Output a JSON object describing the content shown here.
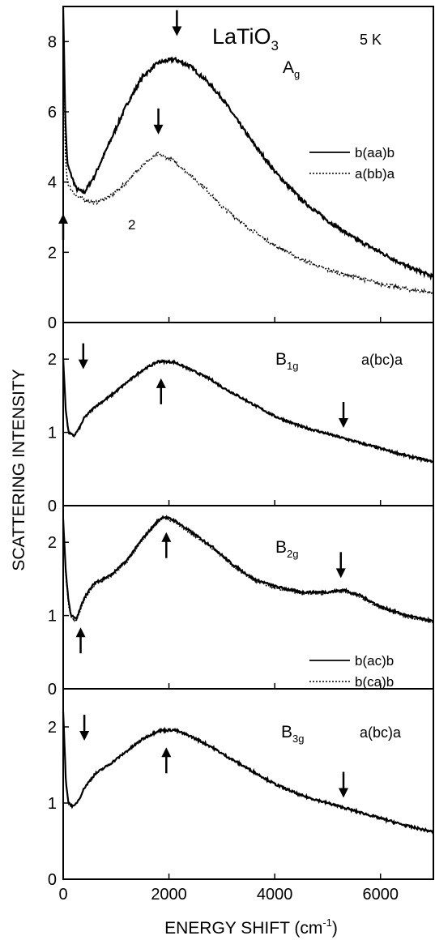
{
  "chart_data": {
    "type": "line",
    "title": "LaTiO3",
    "title_main": "LaTiO",
    "title_sub": "3",
    "temperature": "5 K",
    "xlabel": "ENERGY SHIFT (cm",
    "xlabel_sup": "-1",
    "xlabel_end": ")",
    "ylabel": "SCATTERING INTENSITY",
    "xlim": [
      0,
      7000
    ],
    "x_ticks": [
      0,
      2000,
      4000,
      6000
    ],
    "x_tick_labels": [
      "0",
      "2000",
      "4000",
      "6000"
    ],
    "grid": false,
    "panels": [
      {
        "id": "Ag",
        "symbol": "A",
        "symbol_sub": "g",
        "geometry": "",
        "ylim": [
          0,
          9
        ],
        "y_ticks": [
          0,
          2,
          4,
          6,
          8
        ],
        "y_tick_labels": [
          "0",
          "2",
          "4",
          "6",
          "8"
        ],
        "annotation": "2",
        "legend": [
          "b(aa)b",
          "a(bb)a"
        ],
        "series": [
          {
            "name": "b(aa)b",
            "style": "solid",
            "x": [
              0,
              40,
              80,
              150,
              250,
              400,
              600,
              900,
              1200,
              1500,
              1800,
              2100,
              2400,
              2700,
              3000,
              3500,
              4000,
              4500,
              5000,
              5500,
              6000,
              6500,
              7000
            ],
            "y": [
              9,
              5.8,
              4.5,
              4.2,
              3.8,
              3.7,
              4.2,
              5.2,
              6.2,
              7.0,
              7.4,
              7.5,
              7.3,
              6.9,
              6.4,
              5.3,
              4.3,
              3.5,
              2.9,
              2.4,
              2.0,
              1.6,
              1.3
            ]
          },
          {
            "name": "a(bb)a",
            "style": "dotted",
            "x": [
              0,
              40,
              80,
              150,
              250,
              400,
              600,
              900,
              1200,
              1500,
              1800,
              2100,
              2400,
              2700,
              3000,
              3500,
              4000,
              4500,
              5000,
              5500,
              6000,
              6500,
              7000
            ],
            "y": [
              9,
              4.8,
              4.0,
              3.8,
              3.6,
              3.5,
              3.4,
              3.6,
              4.0,
              4.5,
              4.8,
              4.6,
              4.2,
              3.8,
              3.3,
              2.7,
              2.2,
              1.8,
              1.5,
              1.3,
              1.1,
              0.95,
              0.85
            ]
          }
        ],
        "arrows": [
          {
            "x": 2150,
            "dir": "down",
            "y": 8.55
          },
          {
            "x": 1800,
            "dir": "down",
            "y": 5.75
          },
          {
            "x": 0,
            "dir": "up",
            "y": 2.7
          }
        ]
      },
      {
        "id": "B1g",
        "symbol": "B",
        "symbol_sub": "1g",
        "geometry": "a(bc)a",
        "ylim": [
          0,
          2.5
        ],
        "y_ticks": [
          0,
          1,
          2
        ],
        "y_tick_labels": [
          "0",
          "1",
          "2"
        ],
        "annotation": "",
        "legend": [],
        "series": [
          {
            "name": "a(bc)a",
            "style": "solid",
            "x": [
              0,
              50,
              100,
              200,
              300,
              400,
              600,
              900,
              1200,
              1500,
              1800,
              2100,
              2400,
              2800,
              3000,
              3500,
              4000,
              4500,
              5000,
              5500,
              6000,
              6500,
              7000
            ],
            "y": [
              2.0,
              1.3,
              1.0,
              0.95,
              1.05,
              1.2,
              1.35,
              1.5,
              1.68,
              1.85,
              1.97,
              1.96,
              1.86,
              1.72,
              1.62,
              1.42,
              1.22,
              1.08,
              0.98,
              0.88,
              0.78,
              0.68,
              0.6
            ]
          }
        ],
        "arrows": [
          {
            "x": 380,
            "dir": "down",
            "y": 2.05
          },
          {
            "x": 1850,
            "dir": "up",
            "y": 1.55
          },
          {
            "x": 5300,
            "dir": "down",
            "y": 1.25
          }
        ]
      },
      {
        "id": "B2g",
        "symbol": "B",
        "symbol_sub": "2g",
        "geometry": "",
        "ylim": [
          0,
          2.5
        ],
        "y_ticks": [
          0,
          1,
          2
        ],
        "y_tick_labels": [
          "0",
          "1",
          "2"
        ],
        "annotation": "",
        "legend": [
          "b(ac)b",
          "b(ca)b"
        ],
        "series": [
          {
            "name": "b(ac)b",
            "style": "solid",
            "x": [
              0,
              50,
              100,
              150,
              250,
              400,
              600,
              900,
              1200,
              1500,
              1800,
              1900,
              2100,
              2400,
              2800,
              3200,
              3600,
              4000,
              4500,
              5000,
              5300,
              5600,
              6000,
              6500,
              7000
            ],
            "y": [
              2.3,
              1.6,
              1.2,
              1.0,
              0.95,
              1.25,
              1.45,
              1.55,
              1.75,
              2.05,
              2.3,
              2.35,
              2.3,
              2.15,
              1.95,
              1.7,
              1.5,
              1.4,
              1.32,
              1.32,
              1.35,
              1.28,
              1.12,
              1.0,
              0.92
            ]
          },
          {
            "name": "b(ca)b",
            "style": "dotted",
            "x": [
              0,
              50,
              100,
              150,
              250,
              400,
              600,
              900,
              1200,
              1500,
              1800,
              1900,
              2100,
              2400,
              2800,
              3200,
              3600,
              4000,
              4500,
              5000,
              5300,
              5600,
              6000,
              6500,
              7000
            ],
            "y": [
              2.3,
              1.55,
              1.15,
              0.98,
              0.92,
              1.22,
              1.42,
              1.53,
              1.73,
              2.03,
              2.28,
              2.33,
              2.28,
              2.13,
              1.93,
              1.68,
              1.48,
              1.38,
              1.3,
              1.3,
              1.33,
              1.26,
              1.1,
              0.98,
              0.9
            ]
          }
        ],
        "arrows": [
          {
            "x": 1950,
            "dir": "up",
            "y": 1.95
          },
          {
            "x": 5250,
            "dir": "down",
            "y": 1.7
          },
          {
            "x": 330,
            "dir": "up",
            "y": 0.65
          }
        ]
      },
      {
        "id": "B3g",
        "symbol": "B",
        "symbol_sub": "3g",
        "geometry": "a(bc)a",
        "ylim": [
          0,
          2.5
        ],
        "y_ticks": [
          0,
          1,
          2
        ],
        "y_tick_labels": [
          "0",
          "1",
          "2"
        ],
        "annotation": "",
        "legend": [],
        "series": [
          {
            "name": "a(bc)a",
            "style": "solid",
            "x": [
              0,
              50,
              100,
              200,
              300,
              400,
              600,
              900,
              1200,
              1500,
              1800,
              2100,
              2400,
              2800,
              3000,
              3500,
              4000,
              4500,
              5000,
              5500,
              6000,
              6500,
              7000
            ],
            "y": [
              2.2,
              1.3,
              1.0,
              0.95,
              1.05,
              1.2,
              1.38,
              1.52,
              1.68,
              1.84,
              1.95,
              1.96,
              1.88,
              1.74,
              1.65,
              1.45,
              1.25,
              1.1,
              1.0,
              0.9,
              0.8,
              0.7,
              0.62
            ]
          }
        ],
        "arrows": [
          {
            "x": 400,
            "dir": "down",
            "y": 2.0
          },
          {
            "x": 1950,
            "dir": "up",
            "y": 1.55
          },
          {
            "x": 5300,
            "dir": "down",
            "y": 1.25
          }
        ]
      }
    ]
  }
}
